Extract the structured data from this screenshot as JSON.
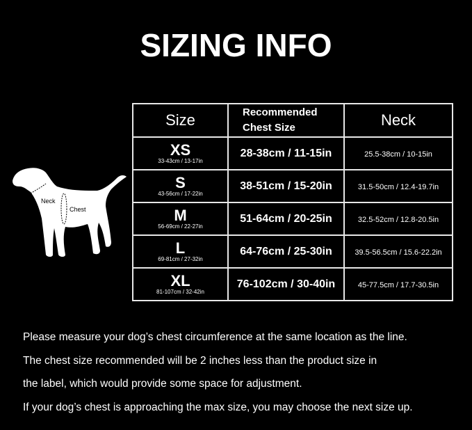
{
  "title": "SIZING INFO",
  "table": {
    "headers": {
      "size": "Size",
      "chest": "Recommended Chest Size",
      "neck": "Neck"
    },
    "rows": [
      {
        "size": "XS",
        "product": "33-43cm / 13-17in",
        "chest": "28-38cm / 11-15in",
        "neck": "25.5-38cm / 10-15in"
      },
      {
        "size": "S",
        "product": "43-56cm / 17-22in",
        "chest": "38-51cm / 15-20in",
        "neck": "31.5-50cm / 12.4-19.7in"
      },
      {
        "size": "M",
        "product": "56-69cm / 22-27in",
        "chest": "51-64cm / 20-25in",
        "neck": "32.5-52cm / 12.8-20.5in"
      },
      {
        "size": "L",
        "product": "69-81cm / 27-32in",
        "chest": "64-76cm / 25-30in",
        "neck": "39.5-56.5cm / 15.6-22.2in"
      },
      {
        "size": "XL",
        "product": "81-107cm / 32-42in",
        "chest": "76-102cm / 30-40in",
        "neck": "45-77.5cm / 17.7-30.5in"
      }
    ]
  },
  "diagram": {
    "neck_label": "Neck",
    "chest_label": "Chest"
  },
  "notes": [
    "Please measure your dog’s chest circumference at the same location as the line.",
    "The chest size recommended will be 2 inches less than the product size in",
    "the label, which would provide some space for adjustment.",
    "If your dog’s chest is approaching the max size, you may choose the next size up."
  ]
}
